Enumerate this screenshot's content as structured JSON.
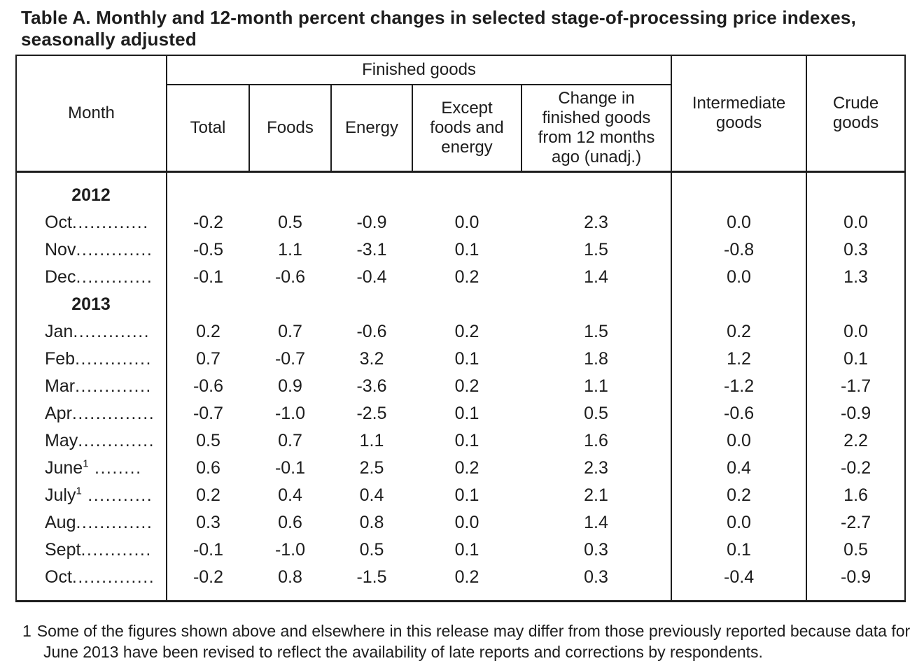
{
  "title": "Table A. Monthly and 12-month percent changes in selected stage-of-processing price indexes, seasonally adjusted",
  "table": {
    "header": {
      "month": "Month",
      "finished_goods": "Finished goods",
      "sub": [
        "Total",
        "Foods",
        "Energy",
        "Except foods and energy",
        "Change in finished goods from 12 months ago (unadj.)"
      ],
      "intermediate": "Intermediate goods",
      "crude": "Crude goods"
    },
    "rows": [
      {
        "type": "year",
        "label": "2012"
      },
      {
        "type": "month",
        "label": "Oct",
        "leader": ".............",
        "values": [
          "-0.2",
          "0.5",
          "-0.9",
          "0.0",
          "2.3",
          "0.0",
          "0.0"
        ]
      },
      {
        "type": "month",
        "label": "Nov",
        "leader": ".............",
        "values": [
          "-0.5",
          "1.1",
          "-3.1",
          "0.1",
          "1.5",
          "-0.8",
          "0.3"
        ]
      },
      {
        "type": "month",
        "label": "Dec",
        "leader": ".............",
        "values": [
          "-0.1",
          "-0.6",
          "-0.4",
          "0.2",
          "1.4",
          "0.0",
          "1.3"
        ]
      },
      {
        "type": "year",
        "label": "2013"
      },
      {
        "type": "month",
        "label": "Jan",
        "leader": ".............",
        "values": [
          "0.2",
          "0.7",
          "-0.6",
          "0.2",
          "1.5",
          "0.2",
          "0.0"
        ]
      },
      {
        "type": "month",
        "label": "Feb",
        "leader": ".............",
        "values": [
          "0.7",
          "-0.7",
          "3.2",
          "0.1",
          "1.8",
          "1.2",
          "0.1"
        ]
      },
      {
        "type": "month",
        "label": "Mar",
        "leader": ".............",
        "values": [
          "-0.6",
          "0.9",
          "-3.6",
          "0.2",
          "1.1",
          "-1.2",
          "-1.7"
        ]
      },
      {
        "type": "month",
        "label": "Apr",
        "leader": "..............",
        "values": [
          "-0.7",
          "-1.0",
          "-2.5",
          "0.1",
          "0.5",
          "-0.6",
          "-0.9"
        ]
      },
      {
        "type": "month",
        "label": "May",
        "leader": ".............",
        "values": [
          "0.5",
          "0.7",
          "1.1",
          "0.1",
          "1.6",
          "0.0",
          "2.2"
        ]
      },
      {
        "type": "month",
        "label": "June",
        "sup": "1",
        "leader": " ........",
        "values": [
          "0.6",
          "-0.1",
          "2.5",
          "0.2",
          "2.3",
          "0.4",
          "-0.2"
        ]
      },
      {
        "type": "month",
        "label": "July",
        "sup": "1",
        "leader": " ...........",
        "values": [
          "0.2",
          "0.4",
          "0.4",
          "0.1",
          "2.1",
          "0.2",
          "1.6"
        ]
      },
      {
        "type": "month",
        "label": "Aug",
        "leader": ".............",
        "values": [
          "0.3",
          "0.6",
          "0.8",
          "0.0",
          "1.4",
          "0.0",
          "-2.7"
        ]
      },
      {
        "type": "month",
        "label": "Sept",
        "leader": "............",
        "values": [
          "-0.1",
          "-1.0",
          "0.5",
          "0.1",
          "0.3",
          "0.1",
          "0.5"
        ]
      },
      {
        "type": "month",
        "label": "Oct",
        "leader": "..............",
        "values": [
          "-0.2",
          "0.8",
          "-1.5",
          "0.2",
          "0.3",
          "-0.4",
          "-0.9"
        ]
      }
    ]
  },
  "footnote": {
    "marker": "1",
    "text": "Some of the figures shown above and elsewhere in this release may differ from those previously reported because data for June 2013 have been revised to reflect the availability of late reports and corrections by respondents."
  }
}
